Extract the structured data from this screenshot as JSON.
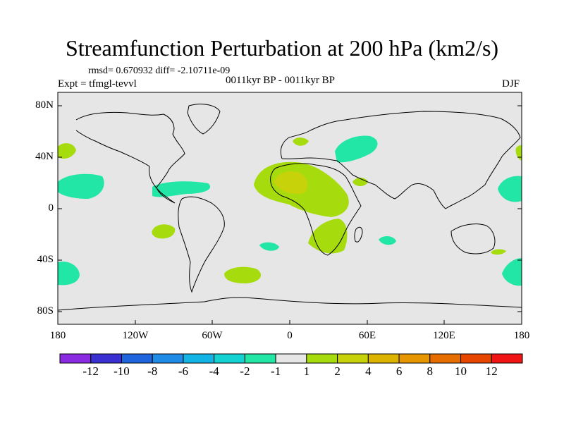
{
  "title": "Streamfunction Perturbation at 200 hPa (km2/s)",
  "stats": "rmsd= 0.670932 diff= -2.10711e-09",
  "expt": "Expt = tfmgl-tevvl",
  "period": "0011kyr BP - 0011kyr BP",
  "season": "DJF",
  "lat_labels": [
    "80N",
    "40N",
    "0",
    "40S",
    "80S"
  ],
  "lon_labels": [
    "180",
    "120W",
    "60W",
    "0",
    "60E",
    "120E",
    "180"
  ],
  "colorbar": {
    "colors": [
      "#8a2be2",
      "#3a2fd0",
      "#1e64dc",
      "#1e8ce6",
      "#12b4e6",
      "#14d2d2",
      "#22e6a6",
      "#e6e6e6",
      "#a6dc0e",
      "#c8d20a",
      "#dcb400",
      "#e69600",
      "#e66e00",
      "#e64600",
      "#f01414"
    ],
    "labels": [
      "-12",
      "-10",
      "-8",
      "-6",
      "-4",
      "-2",
      "-1",
      "1",
      "2",
      "4",
      "6",
      "8",
      "10",
      "12"
    ]
  },
  "colors": {
    "background": "#e6e6e6",
    "coast": "#000000"
  }
}
